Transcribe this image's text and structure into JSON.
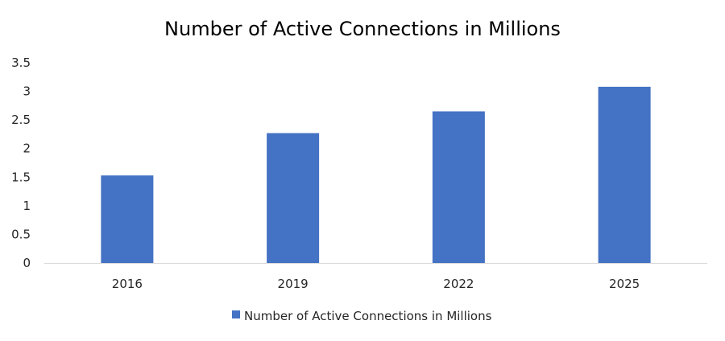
{
  "chart_data": {
    "type": "bar",
    "title": "Number of Active Connections in Millions",
    "categories": [
      "2016",
      "2019",
      "2022",
      "2025"
    ],
    "series": [
      {
        "name": "Number of Active Connections in Millions",
        "values": [
          1.53,
          2.27,
          2.65,
          3.08
        ]
      }
    ],
    "xlabel": "",
    "ylabel": "",
    "ylim": [
      0,
      3.5
    ],
    "yticks": [
      "0",
      "0.5",
      "1",
      "1.5",
      "2",
      "2.5",
      "3",
      "3.5"
    ],
    "grid": false,
    "legend": "bottom-center",
    "colors": {
      "bar": "#4472C4",
      "axis": "#D9D9D9"
    }
  }
}
